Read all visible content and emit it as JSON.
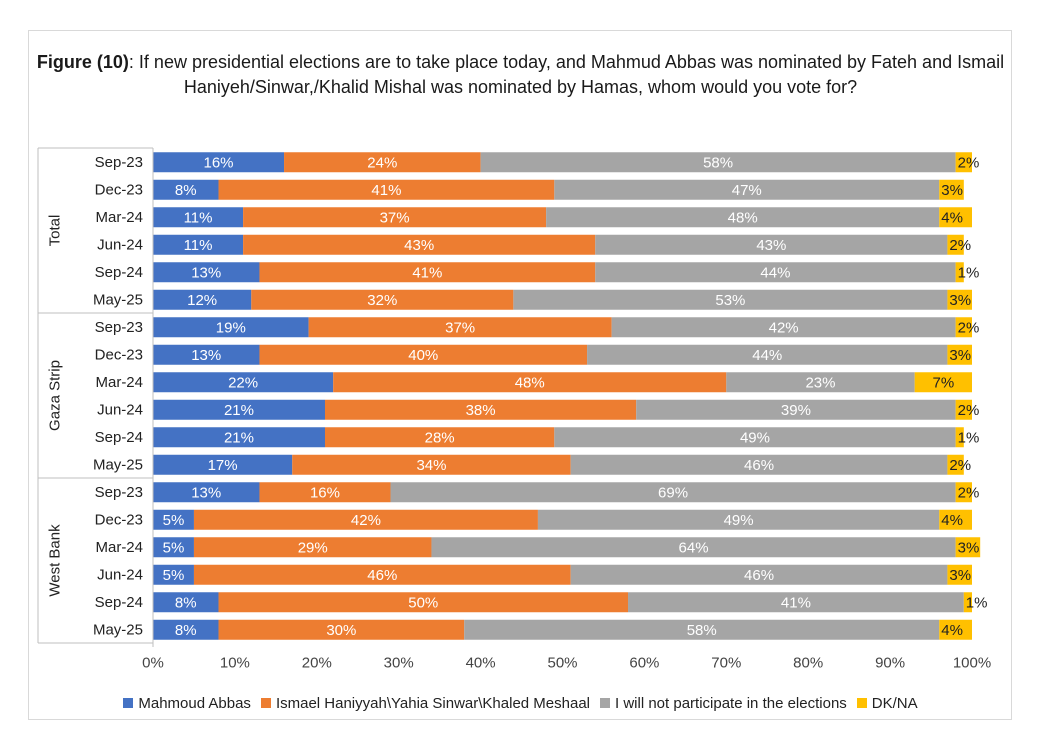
{
  "chart_data": {
    "type": "bar",
    "orientation": "horizontal",
    "stacked": true,
    "title_bold": "Figure (10)",
    "title_rest": ": If new presidential elections are to take place today, and Mahmud Abbas was nominated by Fateh and Ismail Haniyeh/Sinwar,/Khalid Mishal was nominated by Hamas, whom would you vote for?",
    "xlim": [
      0,
      100
    ],
    "xticks": [
      "0%",
      "10%",
      "20%",
      "30%",
      "40%",
      "50%",
      "60%",
      "70%",
      "80%",
      "90%",
      "100%"
    ],
    "groups": [
      {
        "name": "Total",
        "rows": [
          {
            "label": "Sep-23",
            "values": [
              16,
              24,
              58,
              2
            ]
          },
          {
            "label": "Dec-23",
            "values": [
              8,
              41,
              47,
              3
            ]
          },
          {
            "label": "Mar-24",
            "values": [
              11,
              37,
              48,
              4
            ]
          },
          {
            "label": "Jun-24",
            "values": [
              11,
              43,
              43,
              2
            ]
          },
          {
            "label": "Sep-24",
            "values": [
              13,
              41,
              44,
              1
            ]
          },
          {
            "label": "May-25",
            "values": [
              12,
              32,
              53,
              3
            ]
          }
        ]
      },
      {
        "name": "Gaza Strip",
        "rows": [
          {
            "label": "Sep-23",
            "values": [
              19,
              37,
              42,
              2
            ]
          },
          {
            "label": "Dec-23",
            "values": [
              13,
              40,
              44,
              3
            ]
          },
          {
            "label": "Mar-24",
            "values": [
              22,
              48,
              23,
              7
            ]
          },
          {
            "label": "Jun-24",
            "values": [
              21,
              38,
              39,
              2
            ]
          },
          {
            "label": "Sep-24",
            "values": [
              21,
              28,
              49,
              1
            ]
          },
          {
            "label": "May-25",
            "values": [
              17,
              34,
              46,
              2
            ]
          }
        ]
      },
      {
        "name": "West Bank",
        "rows": [
          {
            "label": "Sep-23",
            "values": [
              13,
              16,
              69,
              2
            ]
          },
          {
            "label": "Dec-23",
            "values": [
              5,
              42,
              49,
              4
            ]
          },
          {
            "label": "Mar-24",
            "values": [
              5,
              29,
              64,
              3
            ]
          },
          {
            "label": "Jun-24",
            "values": [
              5,
              46,
              46,
              3
            ]
          },
          {
            "label": "Sep-24",
            "values": [
              8,
              50,
              41,
              1
            ]
          },
          {
            "label": "May-25",
            "values": [
              8,
              30,
              58,
              4
            ]
          }
        ]
      }
    ],
    "series": [
      {
        "name": "Mahmoud Abbas",
        "color": "#4472c4"
      },
      {
        "name": "Ismael Haniyyah\\Yahia Sinwar\\Khaled Meshaal",
        "color": "#ed7d31"
      },
      {
        "name": "I will not participate in the elections",
        "color": "#a5a5a5"
      },
      {
        "name": "DK/NA",
        "color": "#ffc000"
      }
    ],
    "legend_position": "bottom"
  }
}
